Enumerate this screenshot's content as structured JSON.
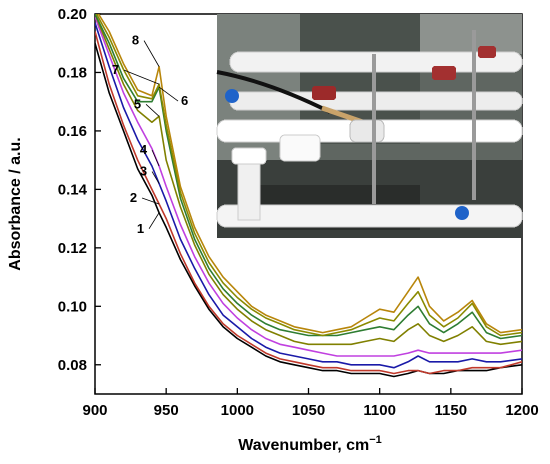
{
  "chart_data": {
    "type": "line",
    "xlabel": "Wavenumber, cm",
    "xlabel_superscript": "−1",
    "ylabel": "Absorbance / a.u.",
    "xlim": [
      900,
      1200
    ],
    "ylim": [
      0.07,
      0.2
    ],
    "x_ticks": [
      "900",
      "950",
      "1000",
      "1050",
      "1100",
      "1150",
      "1200"
    ],
    "y_ticks": [
      "0.08",
      "0.10",
      "0.12",
      "0.14",
      "0.16",
      "0.18",
      "0.20"
    ],
    "grid": false,
    "inset": "photograph of the experimental setup (white pipes, fibre-optic probe)",
    "x": [
      900,
      910,
      920,
      930,
      940,
      945,
      950,
      960,
      970,
      980,
      990,
      1000,
      1010,
      1020,
      1030,
      1040,
      1050,
      1060,
      1070,
      1080,
      1090,
      1100,
      1110,
      1120,
      1127,
      1135,
      1145,
      1155,
      1165,
      1175,
      1185,
      1200
    ],
    "series": [
      {
        "name": "1",
        "color": "#000000",
        "values": [
          0.19,
          0.173,
          0.16,
          0.147,
          0.138,
          0.132,
          0.127,
          0.116,
          0.107,
          0.099,
          0.093,
          0.089,
          0.086,
          0.083,
          0.081,
          0.08,
          0.079,
          0.078,
          0.078,
          0.077,
          0.077,
          0.077,
          0.076,
          0.077,
          0.078,
          0.077,
          0.077,
          0.078,
          0.078,
          0.078,
          0.079,
          0.08
        ]
      },
      {
        "name": "2",
        "color": "#c0392b",
        "values": [
          0.194,
          0.176,
          0.162,
          0.15,
          0.14,
          0.135,
          0.13,
          0.118,
          0.108,
          0.1,
          0.094,
          0.09,
          0.087,
          0.084,
          0.082,
          0.081,
          0.08,
          0.079,
          0.079,
          0.078,
          0.078,
          0.078,
          0.077,
          0.078,
          0.078,
          0.077,
          0.078,
          0.078,
          0.079,
          0.079,
          0.079,
          0.081
        ]
      },
      {
        "name": "3",
        "color": "#1a1aa8",
        "values": [
          0.197,
          0.182,
          0.168,
          0.157,
          0.148,
          0.142,
          0.136,
          0.123,
          0.113,
          0.104,
          0.097,
          0.093,
          0.089,
          0.086,
          0.084,
          0.083,
          0.082,
          0.081,
          0.081,
          0.08,
          0.08,
          0.08,
          0.079,
          0.081,
          0.083,
          0.081,
          0.081,
          0.081,
          0.082,
          0.081,
          0.081,
          0.082
        ]
      },
      {
        "name": "4",
        "color": "#c040e0",
        "values": [
          0.199,
          0.186,
          0.173,
          0.163,
          0.154,
          0.148,
          0.141,
          0.128,
          0.117,
          0.108,
          0.101,
          0.096,
          0.092,
          0.089,
          0.087,
          0.086,
          0.085,
          0.084,
          0.083,
          0.083,
          0.083,
          0.083,
          0.083,
          0.084,
          0.085,
          0.084,
          0.084,
          0.084,
          0.084,
          0.084,
          0.084,
          0.085
        ]
      },
      {
        "name": "5",
        "color": "#808000",
        "values": [
          0.2,
          0.188,
          0.176,
          0.167,
          0.163,
          0.165,
          0.15,
          0.134,
          0.121,
          0.111,
          0.104,
          0.099,
          0.095,
          0.092,
          0.09,
          0.088,
          0.087,
          0.087,
          0.087,
          0.087,
          0.088,
          0.089,
          0.088,
          0.092,
          0.094,
          0.09,
          0.088,
          0.09,
          0.093,
          0.088,
          0.087,
          0.088
        ]
      },
      {
        "name": "6",
        "color": "#2e7d32",
        "values": [
          0.2,
          0.19,
          0.178,
          0.17,
          0.17,
          0.175,
          0.16,
          0.137,
          0.123,
          0.113,
          0.106,
          0.101,
          0.097,
          0.094,
          0.092,
          0.091,
          0.09,
          0.09,
          0.09,
          0.091,
          0.092,
          0.093,
          0.092,
          0.097,
          0.1,
          0.094,
          0.091,
          0.094,
          0.098,
          0.091,
          0.089,
          0.09
        ]
      },
      {
        "name": "7",
        "color": "#8a8a00",
        "values": [
          0.201,
          0.192,
          0.181,
          0.172,
          0.171,
          0.176,
          0.162,
          0.139,
          0.125,
          0.115,
          0.108,
          0.103,
          0.099,
          0.096,
          0.094,
          0.092,
          0.091,
          0.09,
          0.091,
          0.092,
          0.094,
          0.096,
          0.095,
          0.101,
          0.105,
          0.097,
          0.093,
          0.096,
          0.101,
          0.093,
          0.09,
          0.091
        ]
      },
      {
        "name": "8",
        "color": "#b8860b",
        "values": [
          0.202,
          0.194,
          0.183,
          0.174,
          0.172,
          0.182,
          0.165,
          0.141,
          0.127,
          0.117,
          0.11,
          0.105,
          0.1,
          0.097,
          0.095,
          0.093,
          0.092,
          0.091,
          0.092,
          0.093,
          0.096,
          0.099,
          0.098,
          0.105,
          0.11,
          0.1,
          0.095,
          0.098,
          0.102,
          0.094,
          0.091,
          0.092
        ]
      }
    ]
  },
  "curve_labels": [
    "1",
    "2",
    "3",
    "4",
    "5",
    "6",
    "7",
    "8"
  ]
}
